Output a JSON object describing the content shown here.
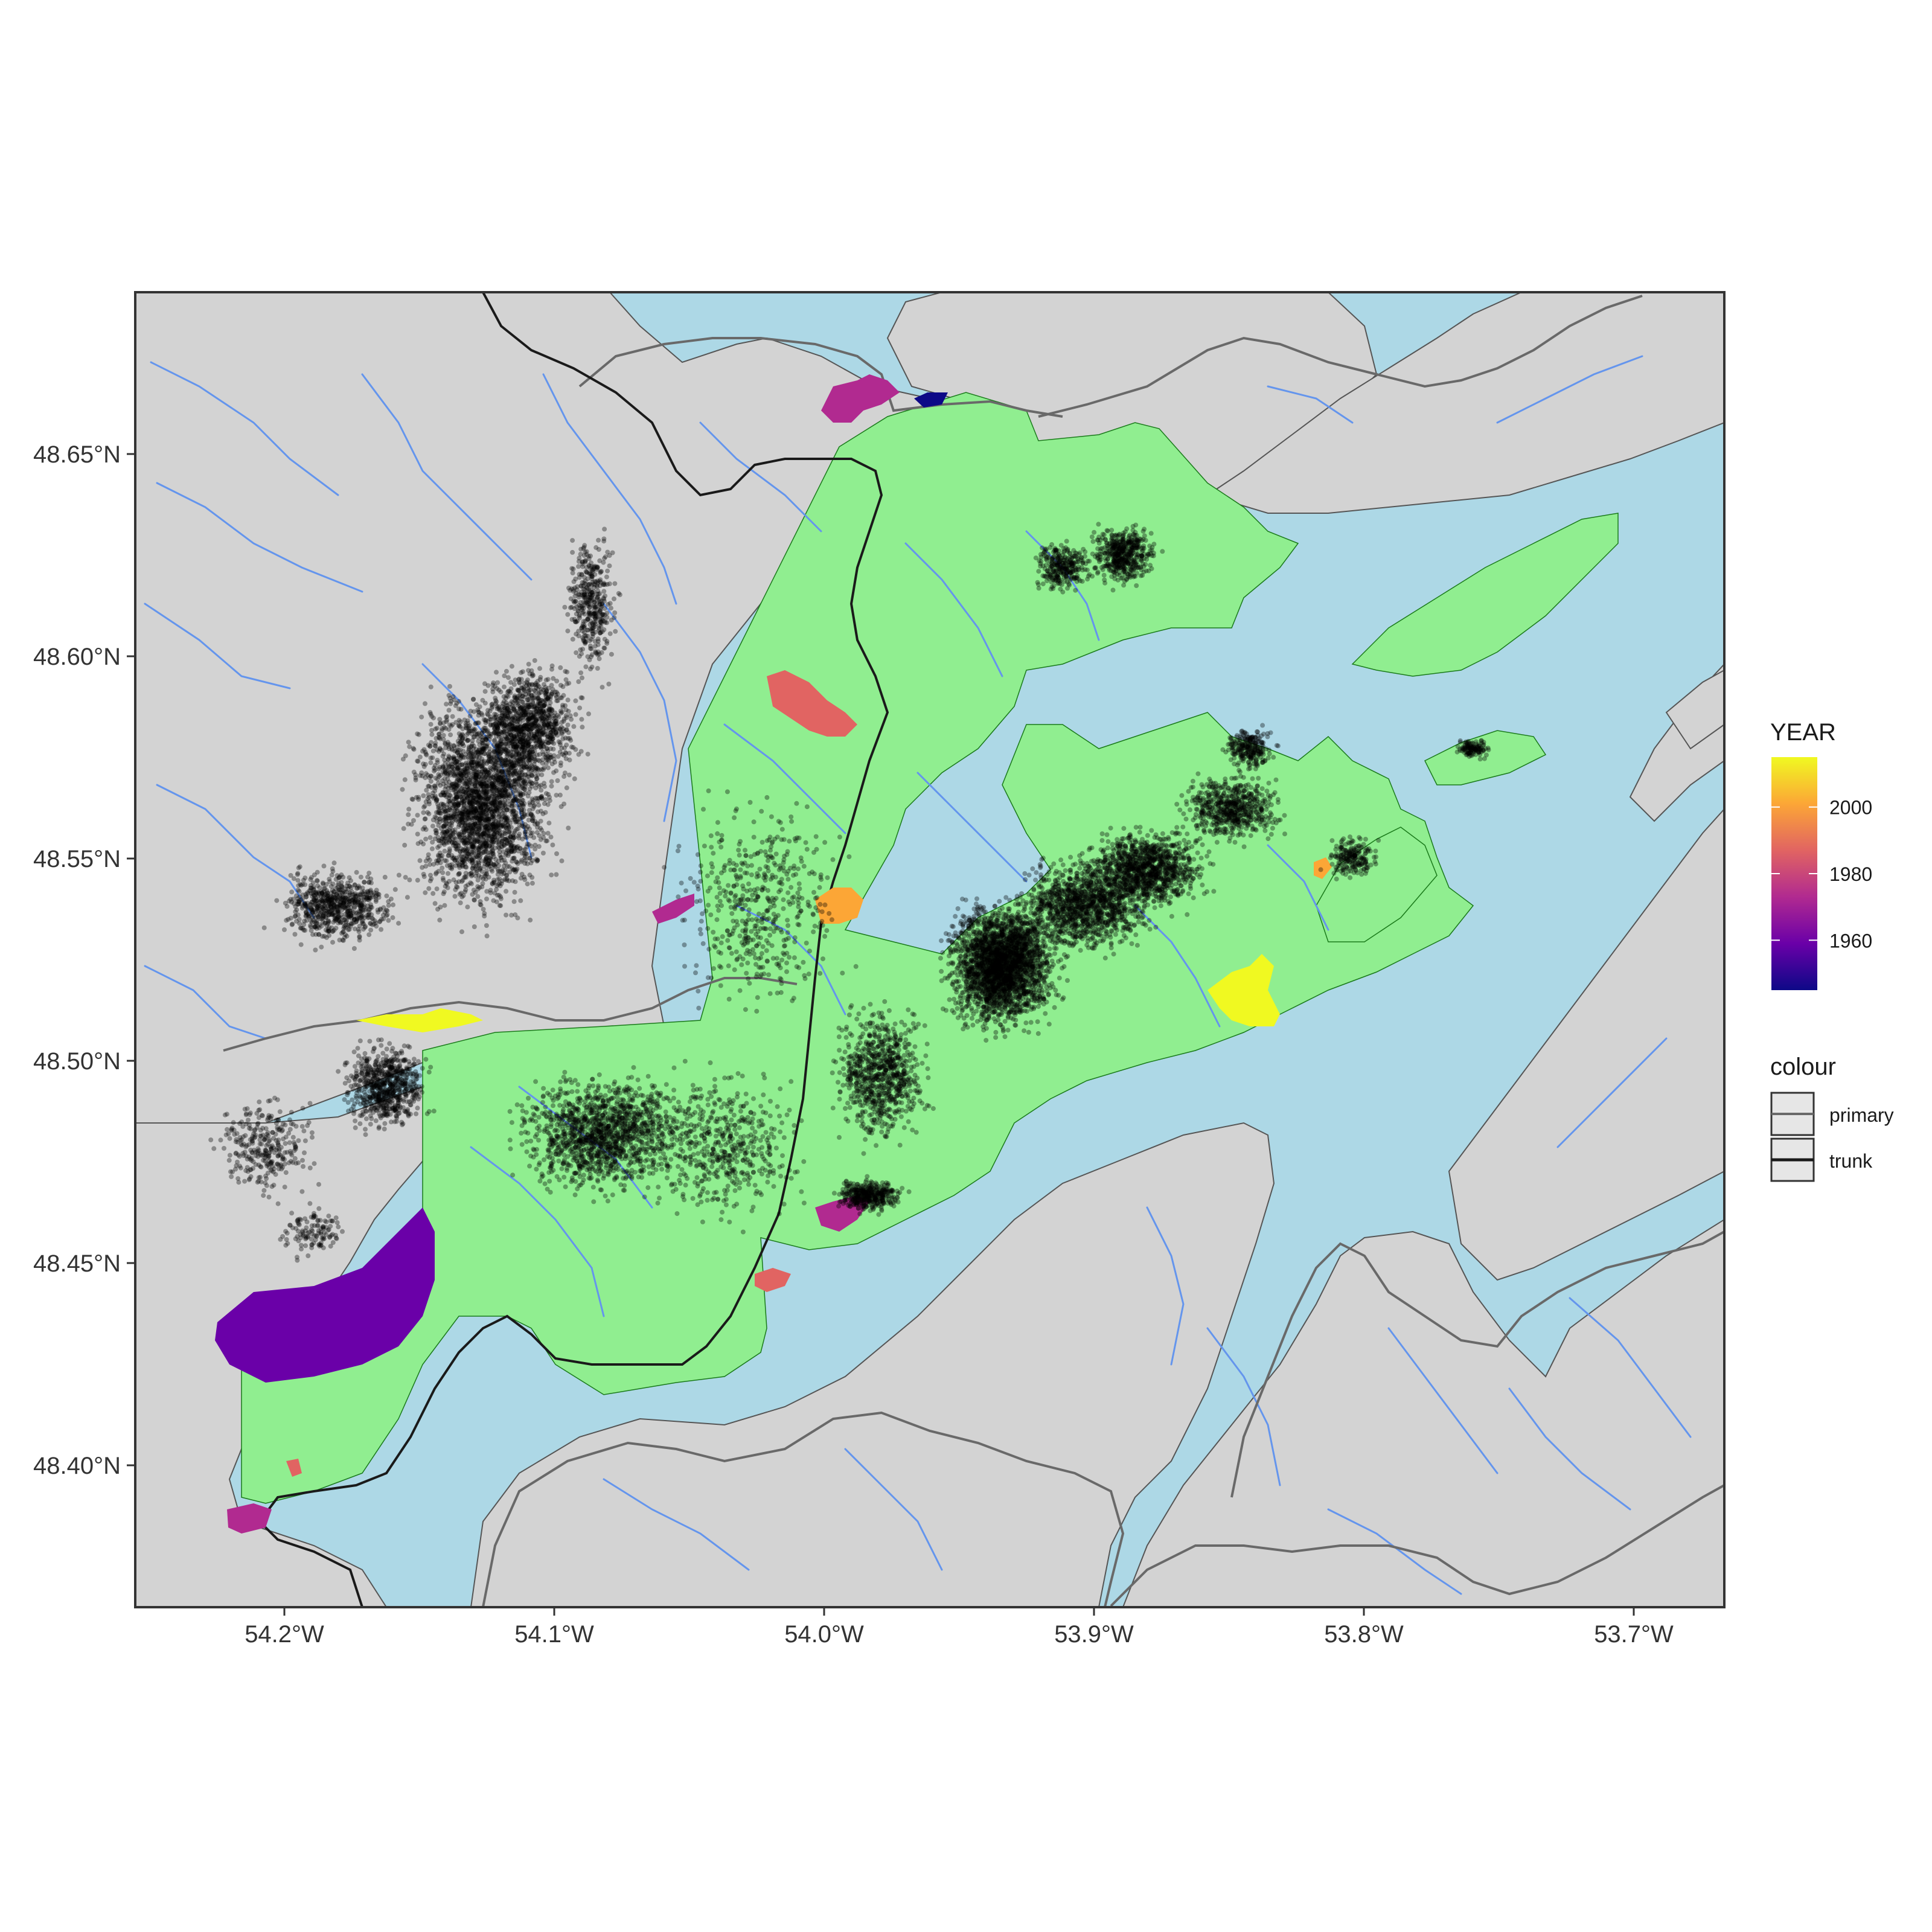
{
  "map": {
    "x_ticks": [
      {
        "label": "54.2°W",
        "lon": -54.2
      },
      {
        "label": "54.1°W",
        "lon": -54.1
      },
      {
        "label": "54.0°W",
        "lon": -54.0
      },
      {
        "label": "53.9°W",
        "lon": -53.9
      },
      {
        "label": "53.8°W",
        "lon": -53.8
      },
      {
        "label": "53.7°W",
        "lon": -53.7
      }
    ],
    "y_ticks": [
      {
        "label": "48.65°N",
        "lat": 48.65
      },
      {
        "label": "48.60°N",
        "lat": 48.6
      },
      {
        "label": "48.55°N",
        "lat": 48.55
      },
      {
        "label": "48.50°N",
        "lat": 48.5
      },
      {
        "label": "48.45°N",
        "lat": 48.45
      },
      {
        "label": "48.40°N",
        "lat": 48.4
      }
    ],
    "colors": {
      "land": "#d3d3d3",
      "water": "#add8e6",
      "park": "#90ee90",
      "river": "#6495ed",
      "primary_road": "#696969",
      "trunk_road": "#1a1a1a",
      "points": "#000000"
    }
  },
  "legend": {
    "year_title": "YEAR",
    "year_ticks": [
      {
        "label": "2000",
        "value": 2000
      },
      {
        "label": "1980",
        "value": 1980
      },
      {
        "label": "1960",
        "value": 1960
      }
    ],
    "year_range": [
      1945,
      2015
    ],
    "year_colors": [
      "#0d0887",
      "#6a00a8",
      "#b12a90",
      "#e16462",
      "#fca636",
      "#f0f921"
    ],
    "colour_title": "colour",
    "colour_items": [
      {
        "label": "primary",
        "color": "#696969"
      },
      {
        "label": "trunk",
        "color": "#1a1a1a"
      }
    ]
  }
}
